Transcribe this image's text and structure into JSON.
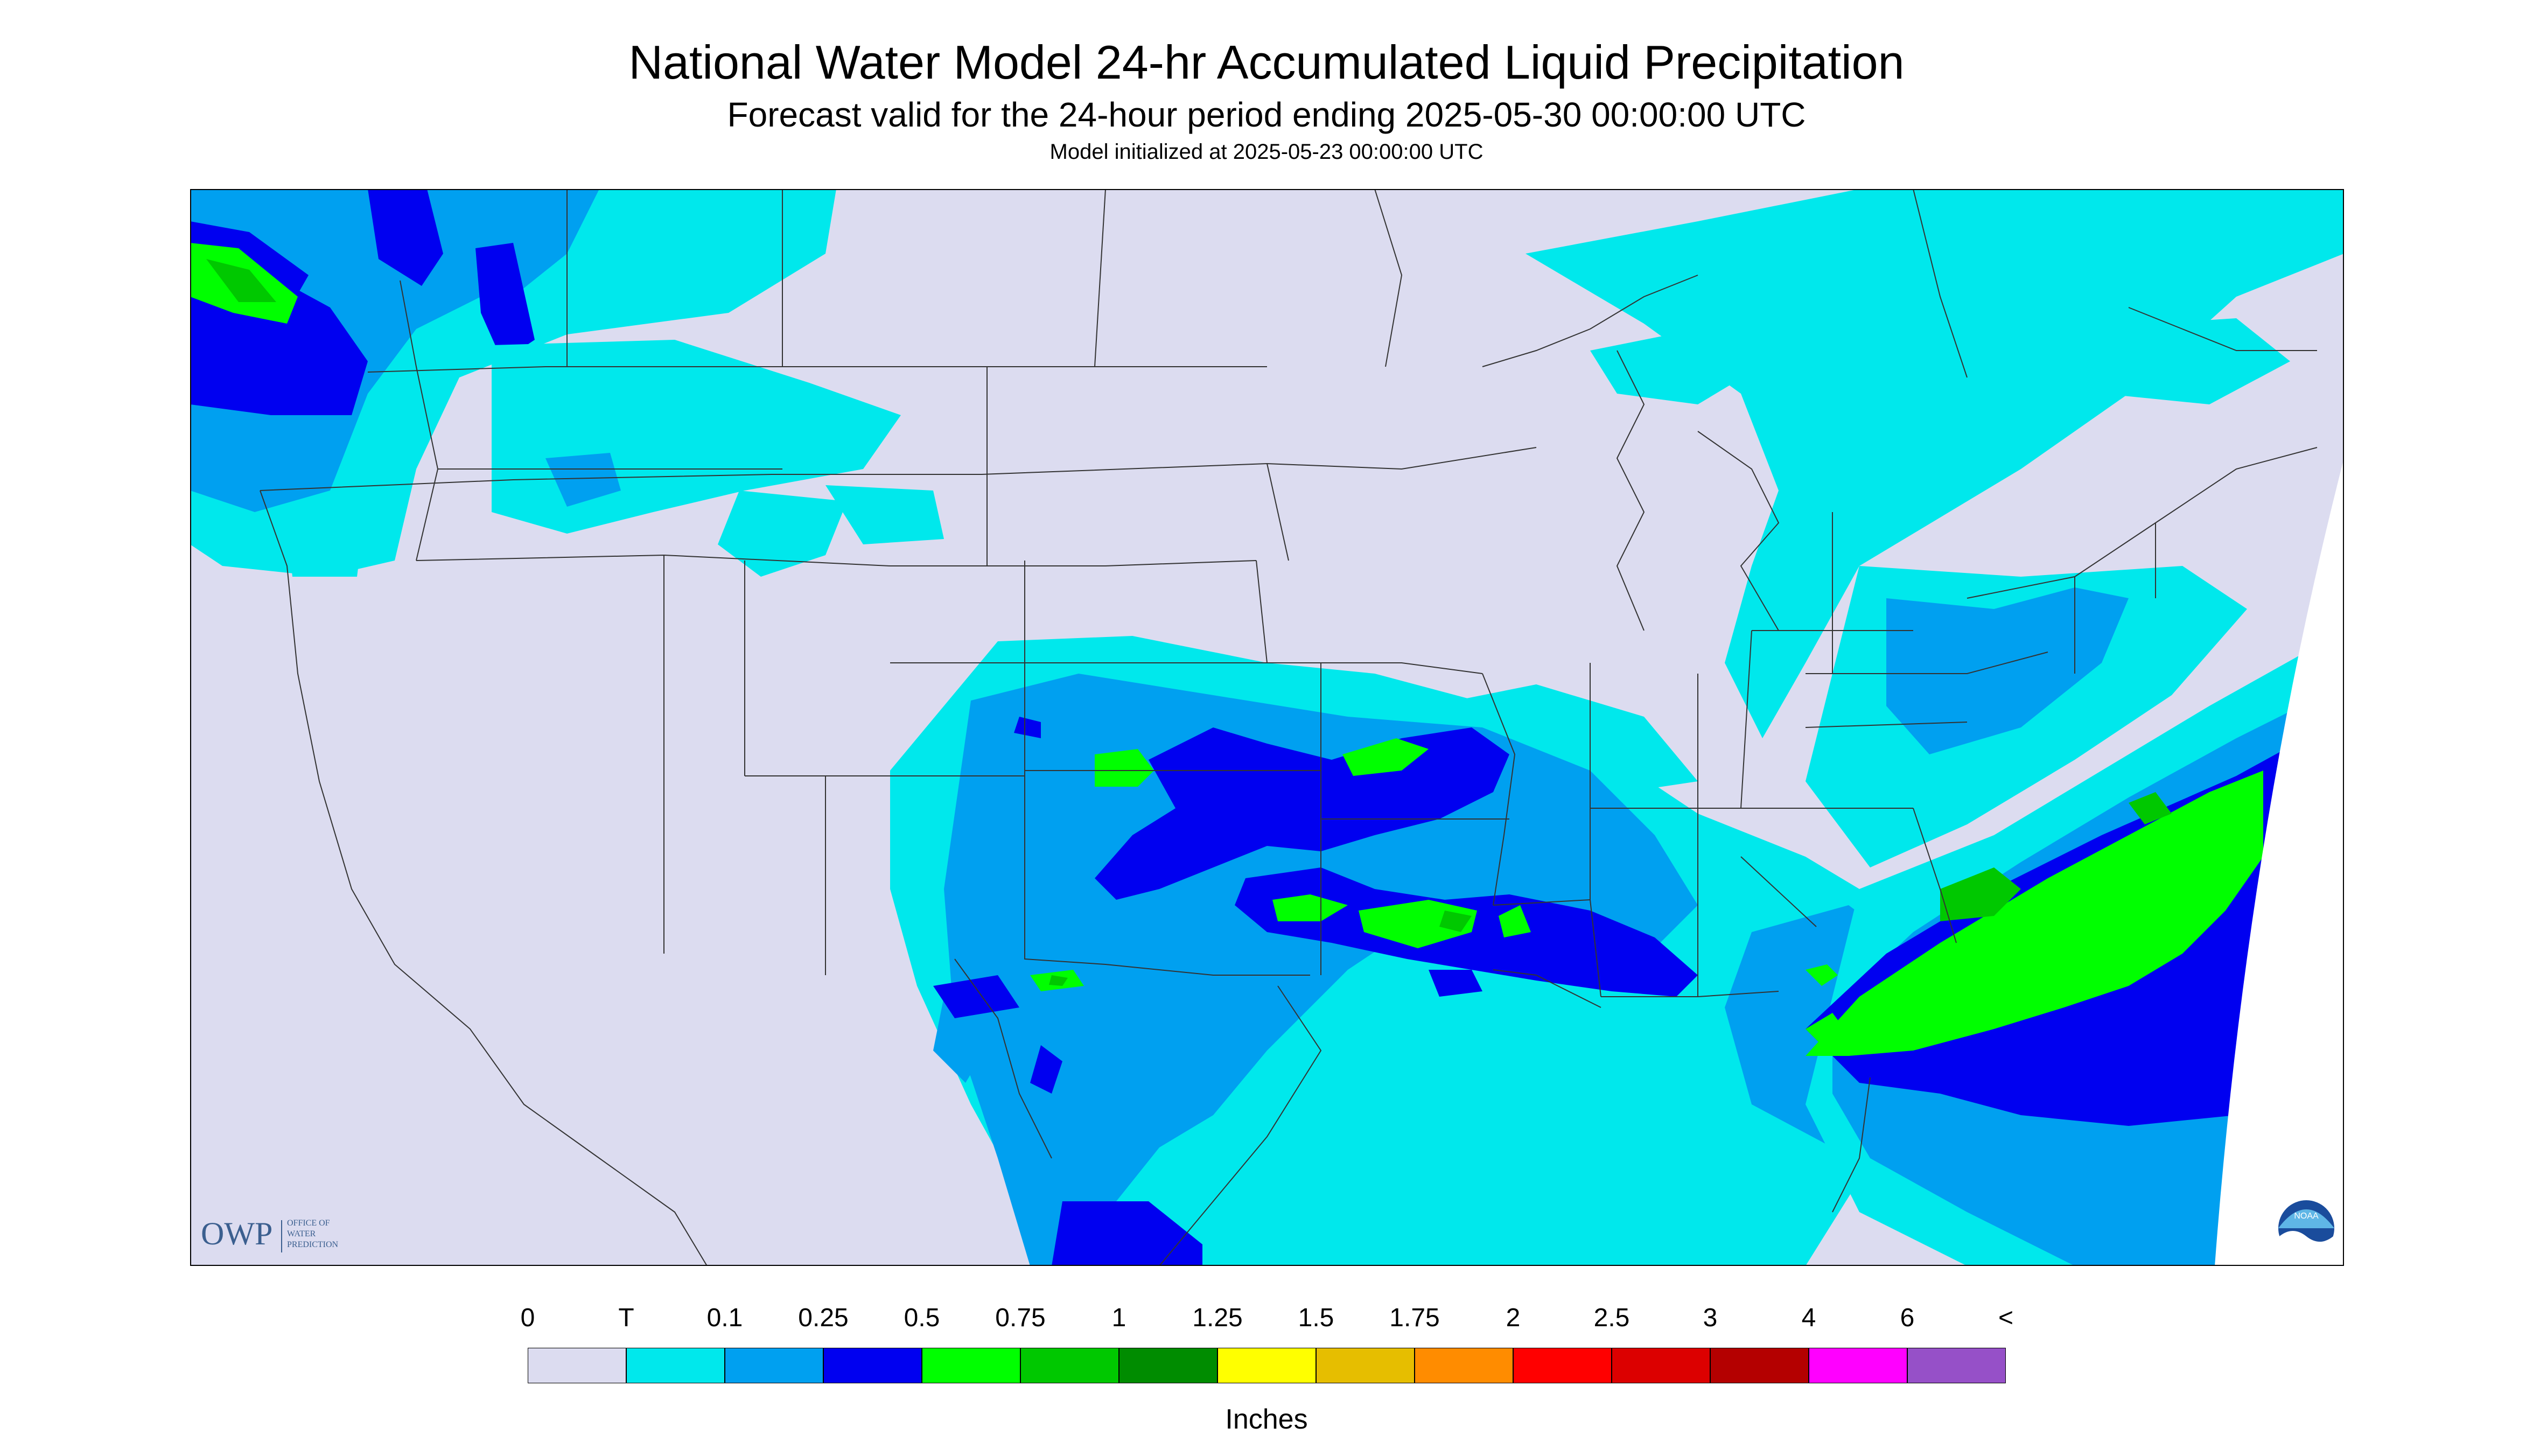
{
  "header": {
    "title": "National Water Model 24-hr Accumulated Liquid Precipitation",
    "subtitle": "Forecast valid for the 24-hour period ending 2025-05-30 00:00:00 UTC",
    "init": "Model initialized at 2025-05-23 00:00:00 UTC"
  },
  "map": {
    "background_color": "#dcdcf0",
    "border_color": "#000000",
    "logo": {
      "text": "OWP",
      "line1": "OFFICE OF",
      "line2": "WATER",
      "line3": "PREDICTION",
      "color": "#3b5f8f"
    },
    "noaa_logo": {
      "icon": "noaa-icon",
      "text": "NOAA"
    },
    "precip_areas": [
      {
        "name": "northwest",
        "level": 2
      },
      {
        "name": "rockies",
        "level": 1
      },
      {
        "name": "southern-plains",
        "level": 2
      },
      {
        "name": "central-band",
        "level": 3
      },
      {
        "name": "texas",
        "level": 2
      },
      {
        "name": "gulf",
        "level": 1
      },
      {
        "name": "atlantic",
        "level": 4
      },
      {
        "name": "northeast",
        "level": 1
      },
      {
        "name": "southern-canada",
        "level": 1
      }
    ]
  },
  "legend": {
    "tick_labels": [
      "0",
      "T",
      "0.1",
      "0.25",
      "0.5",
      "0.75",
      "1",
      "1.25",
      "1.5",
      "1.75",
      "2",
      "2.5",
      "3",
      "4",
      "6",
      "<"
    ],
    "colors": [
      "#dcdcf0",
      "#00e8ec",
      "#00a0f0",
      "#0000f0",
      "#00ff00",
      "#00c800",
      "#008c00",
      "#ffff00",
      "#e6be00",
      "#ff8c00",
      "#ff0000",
      "#dc0000",
      "#b40000",
      "#ff00ff",
      "#9650c8"
    ],
    "units": "Inches"
  }
}
